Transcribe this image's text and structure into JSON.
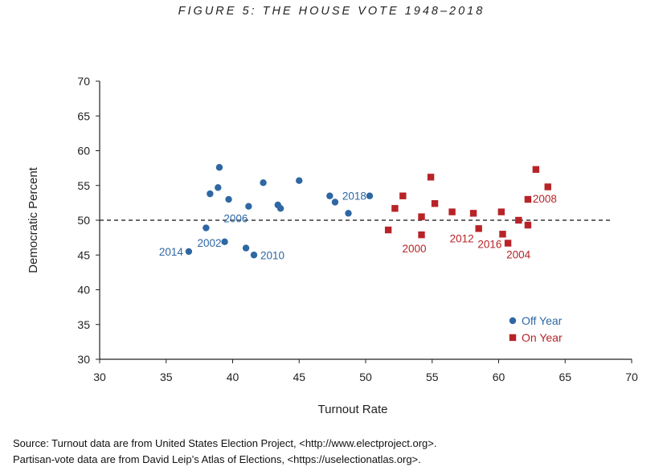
{
  "figure_title": "FIGURE 5: THE HOUSE VOTE 1948–2018",
  "source": {
    "line1": "Source: Turnout data are from United States Election Project, <http://www.electproject.org>.",
    "line2": "Partisan-vote data are from David Leip’s Atlas of Elections, <https://uselectionatlas.org>."
  },
  "colors": {
    "off_year": "#2e67a3",
    "on_year": "#b82327",
    "axis": "#222222"
  },
  "chart_data": {
    "type": "scatter",
    "xlabel": "Turnout Rate",
    "ylabel": "Democratic Percent",
    "xlim": [
      30,
      70
    ],
    "ylim": [
      30,
      70
    ],
    "xticks": [
      30,
      35,
      40,
      45,
      50,
      55,
      60,
      65,
      70
    ],
    "yticks": [
      30,
      35,
      40,
      45,
      50,
      55,
      60,
      65,
      70
    ],
    "reference_line": {
      "y": 50,
      "style": "dashed",
      "x_end": 68.6
    },
    "legend_position": "bottom-right",
    "series": [
      {
        "name": "Off Year",
        "marker": "circle",
        "points": [
          {
            "x": 36.7,
            "y": 45.5,
            "label": "2014"
          },
          {
            "x": 38.0,
            "y": 48.9
          },
          {
            "x": 38.3,
            "y": 53.8
          },
          {
            "x": 38.9,
            "y": 54.7
          },
          {
            "x": 39.0,
            "y": 57.6
          },
          {
            "x": 39.4,
            "y": 46.9,
            "label": "2002"
          },
          {
            "x": 39.7,
            "y": 53.0
          },
          {
            "x": 41.0,
            "y": 46.0
          },
          {
            "x": 41.2,
            "y": 52.0,
            "label": "2006"
          },
          {
            "x": 41.6,
            "y": 45.0,
            "label": "2010"
          },
          {
            "x": 42.3,
            "y": 55.4
          },
          {
            "x": 43.4,
            "y": 52.2
          },
          {
            "x": 43.6,
            "y": 51.7
          },
          {
            "x": 45.0,
            "y": 55.7
          },
          {
            "x": 47.3,
            "y": 53.5
          },
          {
            "x": 47.7,
            "y": 52.6
          },
          {
            "x": 48.7,
            "y": 51.0
          },
          {
            "x": 50.3,
            "y": 53.5,
            "label": "2018"
          }
        ]
      },
      {
        "name": "On Year",
        "marker": "square",
        "points": [
          {
            "x": 51.7,
            "y": 48.6
          },
          {
            "x": 52.2,
            "y": 51.7
          },
          {
            "x": 52.8,
            "y": 53.5
          },
          {
            "x": 54.2,
            "y": 47.9,
            "label": "2000"
          },
          {
            "x": 54.2,
            "y": 50.5
          },
          {
            "x": 54.9,
            "y": 56.2
          },
          {
            "x": 55.2,
            "y": 52.4
          },
          {
            "x": 56.5,
            "y": 51.2
          },
          {
            "x": 58.1,
            "y": 51.0
          },
          {
            "x": 58.5,
            "y": 48.8,
            "label": "2012"
          },
          {
            "x": 60.2,
            "y": 51.2
          },
          {
            "x": 60.3,
            "y": 48.0,
            "label": "2016"
          },
          {
            "x": 60.7,
            "y": 46.7,
            "label": "2004"
          },
          {
            "x": 61.5,
            "y": 50.0
          },
          {
            "x": 62.2,
            "y": 49.3
          },
          {
            "x": 62.2,
            "y": 53.0,
            "label": "2008"
          },
          {
            "x": 62.8,
            "y": 57.3
          },
          {
            "x": 63.7,
            "y": 54.8
          }
        ]
      }
    ]
  }
}
